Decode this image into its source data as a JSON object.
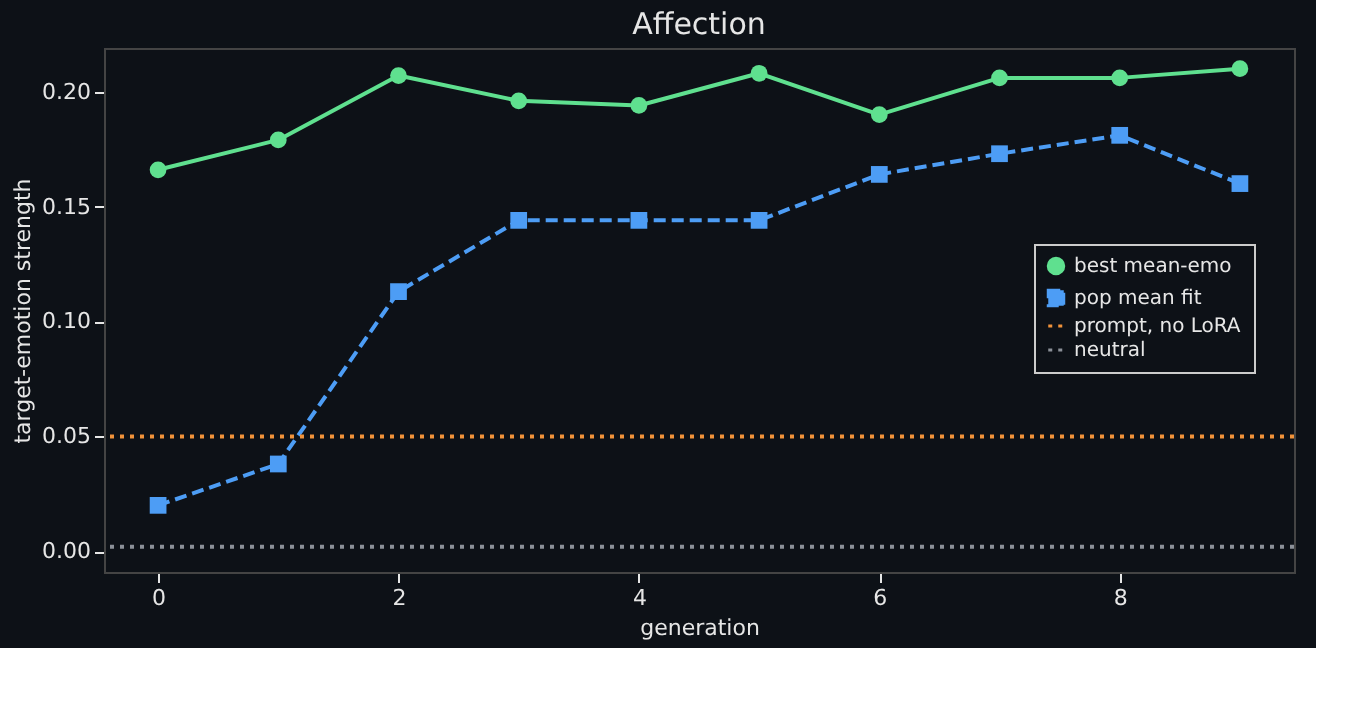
{
  "chart_data": {
    "type": "line",
    "title": "Affection",
    "xlabel": "generation",
    "ylabel": "target-emotion strength",
    "x": [
      0,
      1,
      2,
      3,
      4,
      5,
      6,
      7,
      8,
      9
    ],
    "xlim": [
      -0.45,
      9.45
    ],
    "xticks": [
      0,
      2,
      4,
      6,
      8
    ],
    "ylim": [
      -0.009,
      0.219
    ],
    "yticks": [
      {
        "value": 0,
        "label": "0.00"
      },
      0.05,
      {
        "value": 0.1,
        "label": "0.10"
      },
      0.15,
      {
        "value": 0.2,
        "label": "0.20"
      }
    ],
    "grid": false,
    "legend": "right",
    "series": [
      {
        "name": "best mean-emo",
        "color": "#5fe08f",
        "marker": "circle",
        "line_style": "solid",
        "values": [
          0.166,
          0.179,
          0.207,
          0.196,
          0.194,
          0.208,
          0.19,
          0.206,
          0.206,
          0.21
        ]
      },
      {
        "name": "pop mean fit",
        "color": "#4d9df5",
        "marker": "square",
        "line_style": "dashed",
        "values": [
          0.02,
          0.038,
          0.113,
          0.144,
          0.144,
          0.144,
          0.164,
          0.173,
          0.181,
          0.16
        ]
      }
    ],
    "ref_lines": [
      {
        "axis": "y",
        "value": 0.05,
        "label": "prompt, no LoRA",
        "color": "#f0923a",
        "line_style": "dotted"
      },
      {
        "axis": "y",
        "value": 0.002,
        "label": "neutral",
        "color": "#8b9098",
        "line_style": "dotted"
      }
    ]
  }
}
